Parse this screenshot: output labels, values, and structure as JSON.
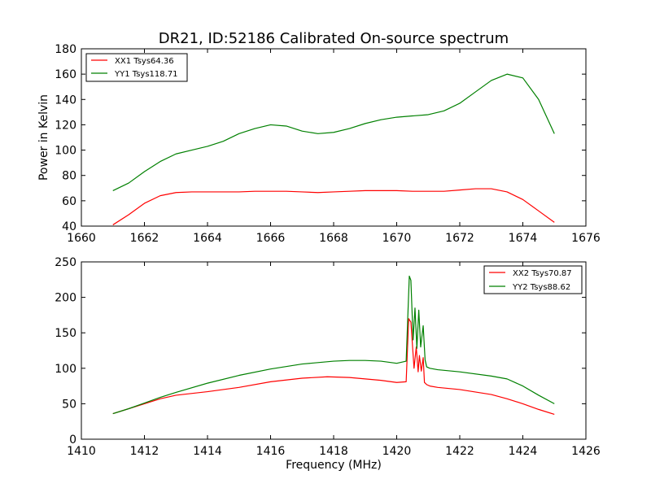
{
  "colors": {
    "red": "#ff0000",
    "green": "#008000"
  },
  "chart_data": [
    {
      "type": "line",
      "title": "DR21, ID:52186 Calibrated On-source spectrum",
      "xlabel": "",
      "ylabel": "Power in Kelvin",
      "xlim": [
        1660,
        1676
      ],
      "ylim": [
        40,
        180
      ],
      "xticks": [
        "1660",
        "1662",
        "1664",
        "1666",
        "1668",
        "1670",
        "1672",
        "1674",
        "1676"
      ],
      "yticks": [
        "40",
        "60",
        "80",
        "100",
        "120",
        "140",
        "160",
        "180"
      ],
      "legend_position": "top-left",
      "series": [
        {
          "name": "XX1 Tsys64.36",
          "color": "#ff0000",
          "x": [
            1661.0,
            1661.5,
            1662.0,
            1662.5,
            1663.0,
            1663.5,
            1664.0,
            1664.5,
            1665.0,
            1665.5,
            1666.0,
            1666.5,
            1667.0,
            1667.5,
            1668.0,
            1668.5,
            1669.0,
            1669.5,
            1670.0,
            1670.5,
            1671.0,
            1671.5,
            1672.0,
            1672.5,
            1673.0,
            1673.5,
            1674.0,
            1674.5,
            1675.0
          ],
          "y": [
            41,
            49,
            58,
            64,
            66.5,
            67,
            67,
            67,
            67,
            67.5,
            67.5,
            67.5,
            67,
            66.5,
            67,
            67.5,
            68,
            68,
            68,
            67.5,
            67.5,
            67.5,
            68.5,
            69.5,
            69.5,
            67,
            61,
            52,
            43
          ]
        },
        {
          "name": "YY1 Tsys118.71",
          "color": "#008000",
          "x": [
            1661.0,
            1661.5,
            1662.0,
            1662.5,
            1663.0,
            1663.5,
            1664.0,
            1664.5,
            1665.0,
            1665.5,
            1666.0,
            1666.5,
            1667.0,
            1667.5,
            1668.0,
            1668.5,
            1669.0,
            1669.5,
            1670.0,
            1670.5,
            1671.0,
            1671.5,
            1672.0,
            1672.5,
            1673.0,
            1673.5,
            1674.0,
            1674.5,
            1675.0
          ],
          "y": [
            68,
            74,
            83,
            91,
            97,
            100,
            103,
            107,
            113,
            117,
            120,
            119,
            115,
            113,
            114,
            117,
            121,
            124,
            126,
            127,
            128,
            131,
            137,
            146,
            155,
            160,
            157,
            140,
            113
          ]
        }
      ]
    },
    {
      "type": "line",
      "title": "",
      "xlabel": "Frequency (MHz)",
      "ylabel": "",
      "xlim": [
        1410,
        1426
      ],
      "ylim": [
        0,
        250
      ],
      "xticks": [
        "1410",
        "1412",
        "1414",
        "1416",
        "1418",
        "1420",
        "1422",
        "1424",
        "1426"
      ],
      "yticks": [
        "0",
        "50",
        "100",
        "150",
        "200",
        "250"
      ],
      "legend_position": "top-right",
      "series": [
        {
          "name": "XX2 Tsys70.87",
          "color": "#ff0000",
          "x": [
            1411.0,
            1411.5,
            1412.0,
            1412.5,
            1413.0,
            1414.0,
            1415.0,
            1416.0,
            1417.0,
            1417.8,
            1418.5,
            1419.0,
            1419.5,
            1420.0,
            1420.3,
            1420.38,
            1420.45,
            1420.55,
            1420.62,
            1420.68,
            1420.72,
            1420.78,
            1420.84,
            1420.88,
            1420.95,
            1421.05,
            1421.3,
            1422.0,
            1423.0,
            1423.5,
            1424.0,
            1424.5,
            1425.0
          ],
          "y": [
            36,
            43,
            50,
            57,
            62,
            67,
            73,
            81,
            86,
            88,
            87,
            85,
            83,
            80,
            81,
            170,
            165,
            100,
            130,
            95,
            118,
            96,
            115,
            80,
            77,
            75,
            73,
            70,
            63,
            57,
            50,
            42,
            35
          ]
        },
        {
          "name": "YY2 Tsys88.62",
          "color": "#008000",
          "x": [
            1411.0,
            1411.5,
            1412.0,
            1412.5,
            1413.0,
            1414.0,
            1415.0,
            1416.0,
            1417.0,
            1418.0,
            1418.5,
            1419.0,
            1419.5,
            1420.0,
            1420.3,
            1420.4,
            1420.45,
            1420.52,
            1420.58,
            1420.64,
            1420.7,
            1420.76,
            1420.84,
            1420.9,
            1420.95,
            1421.05,
            1421.3,
            1422.0,
            1423.0,
            1423.5,
            1424.0,
            1424.5,
            1425.0
          ],
          "y": [
            36,
            43,
            51,
            59,
            66,
            79,
            90,
            99,
            106,
            110,
            111,
            111,
            110,
            107,
            110,
            230,
            224,
            140,
            185,
            128,
            182,
            130,
            160,
            112,
            102,
            100,
            98,
            95,
            89,
            85,
            75,
            62,
            50
          ]
        }
      ]
    }
  ]
}
